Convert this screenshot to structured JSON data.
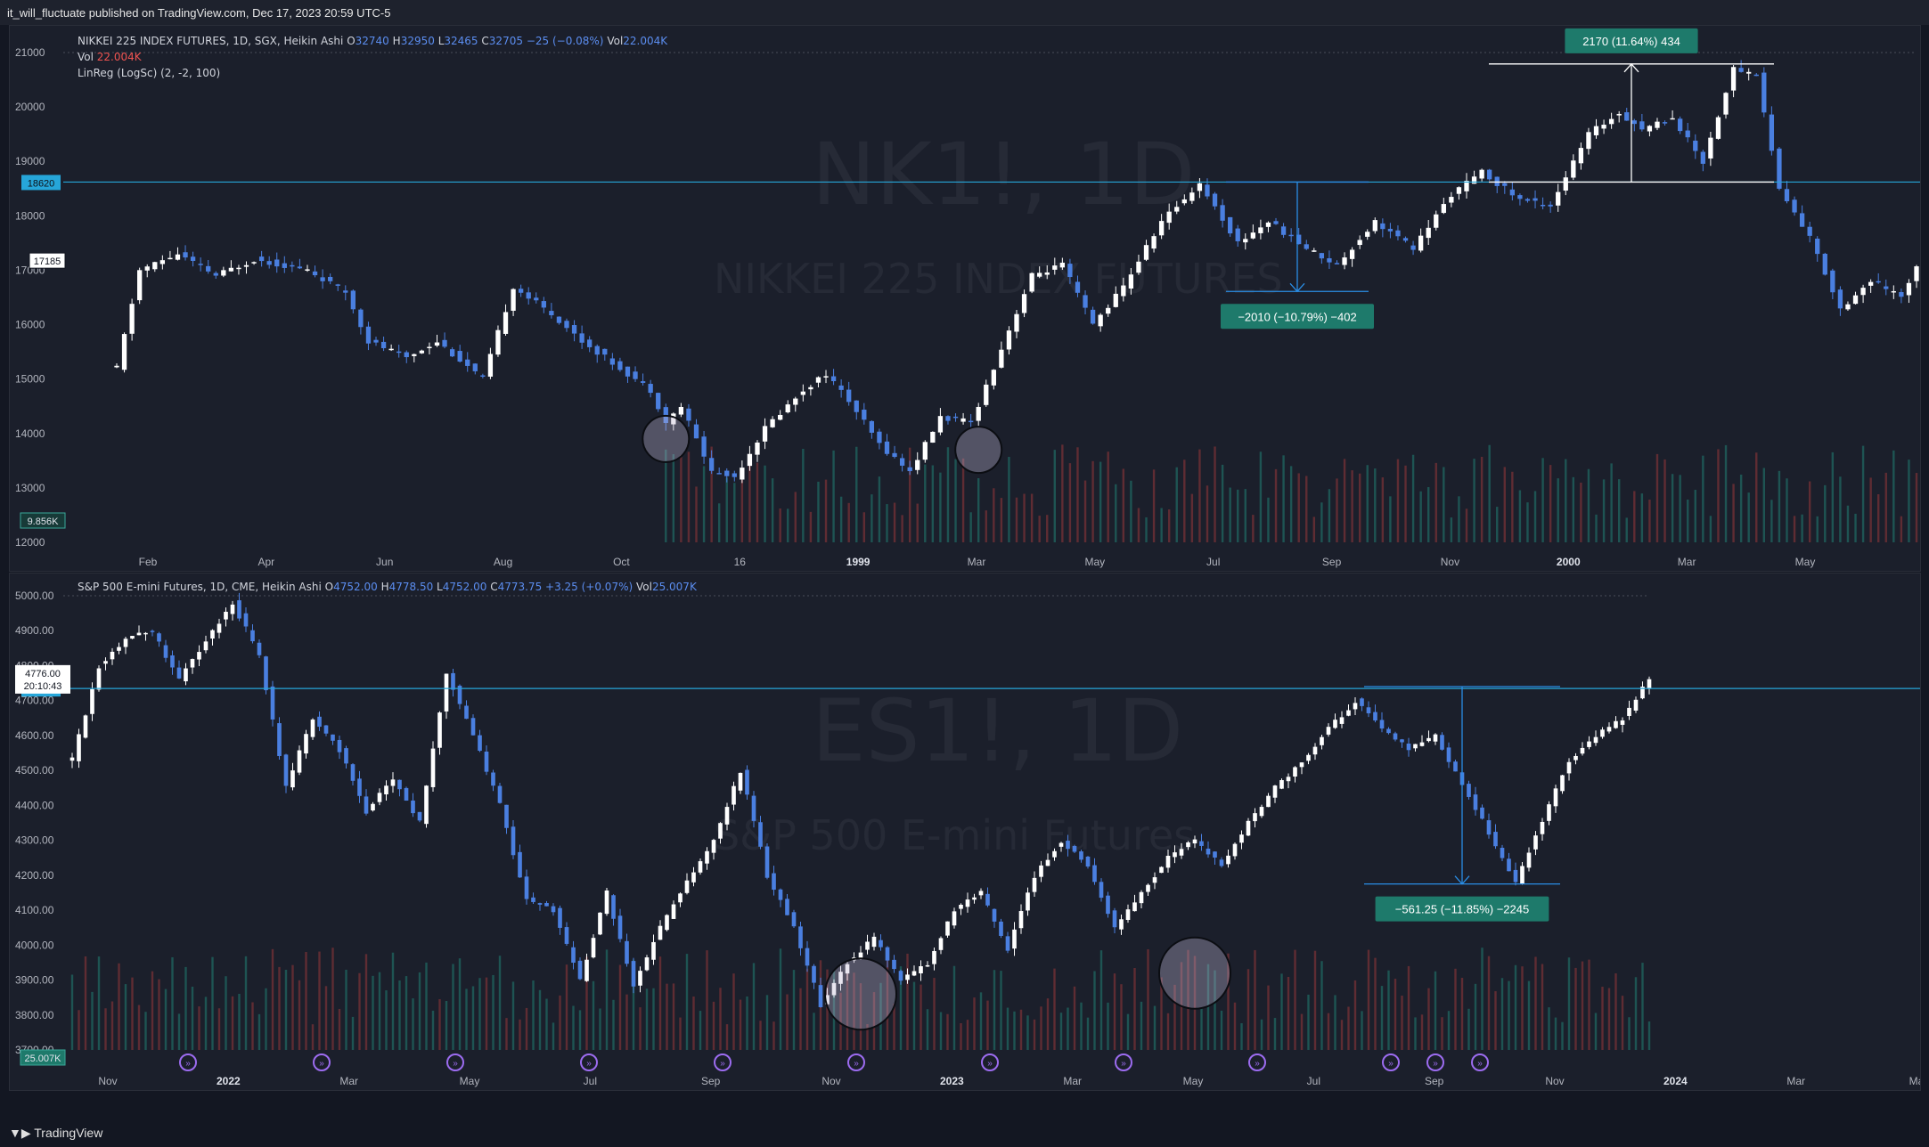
{
  "header": {
    "published": "it_will_fluctuate published on TradingView.com, Dec 17, 2023 20:59 UTC-5"
  },
  "footer": {
    "brand": "TradingView"
  },
  "colors": {
    "up": "#ffffff",
    "down": "#4a7fe0",
    "level": "#26a6d9",
    "label_bg": "#1e7a6b",
    "vol_up": "#1f5e5a",
    "vol_down": "#6b2f35"
  },
  "chart_data": [
    {
      "type": "candlestick",
      "symbol_watermark": "NK1!, 1D",
      "name_watermark": "NIKKEI 225 INDEX FUTURES",
      "legend": {
        "title": "NIKKEI 225 INDEX FUTURES, 1D, SGX, Heikin Ashi",
        "O": "32740",
        "H": "32950",
        "L": "32465",
        "C": "32705",
        "change": "−25 (−0.08%)",
        "vol": "22.004K",
        "vol_label": "Vol",
        "vol_value": "22.004K",
        "indicator": "LinReg (LogSc) (2, -2, 100)"
      },
      "x_ticks": [
        "Feb",
        "Apr",
        "Jun",
        "Aug",
        "Oct",
        "16",
        "1999",
        "Mar",
        "May",
        "Jul",
        "Sep",
        "Nov",
        "2000",
        "Mar",
        "May"
      ],
      "y_ticks": [
        "21000",
        "20000",
        "19000",
        "18000",
        "17000",
        "16000",
        "15000",
        "14000",
        "13000",
        "12000"
      ],
      "ylim": [
        12000,
        21000
      ],
      "price_labels": {
        "level": "18620",
        "last": "17185",
        "volume": "9.856K"
      },
      "level_line": 18620,
      "measurements": [
        {
          "label": "−2010 (−10.79%) −402",
          "from": 18620,
          "to": 16610
        },
        {
          "label": "2170 (11.64%) 434",
          "from": 18620,
          "to": 20790
        }
      ],
      "path": [
        [
          0,
          15200
        ],
        [
          3,
          17000
        ],
        [
          8,
          17300
        ],
        [
          13,
          16900
        ],
        [
          18,
          17200
        ],
        [
          25,
          17000
        ],
        [
          30,
          16600
        ],
        [
          33,
          15700
        ],
        [
          38,
          15400
        ],
        [
          42,
          15700
        ],
        [
          48,
          15000
        ],
        [
          52,
          16700
        ],
        [
          57,
          16200
        ],
        [
          61,
          15700
        ],
        [
          65,
          15300
        ],
        [
          70,
          14800
        ],
        [
          72,
          14200
        ],
        [
          74,
          14500
        ],
        [
          78,
          13300
        ],
        [
          81,
          13200
        ],
        [
          85,
          14100
        ],
        [
          90,
          14800
        ],
        [
          93,
          15100
        ],
        [
          96,
          14600
        ],
        [
          100,
          13800
        ],
        [
          104,
          13300
        ],
        [
          108,
          14300
        ],
        [
          112,
          14200
        ],
        [
          117,
          15900
        ],
        [
          120,
          16900
        ],
        [
          124,
          17100
        ],
        [
          128,
          16000
        ],
        [
          132,
          16700
        ],
        [
          137,
          17900
        ],
        [
          142,
          18600
        ],
        [
          147,
          17500
        ],
        [
          151,
          17900
        ],
        [
          156,
          17400
        ],
        [
          160,
          17100
        ],
        [
          165,
          17900
        ],
        [
          170,
          17400
        ],
        [
          175,
          18400
        ],
        [
          179,
          18800
        ],
        [
          184,
          18300
        ],
        [
          188,
          18200
        ],
        [
          193,
          19500
        ],
        [
          197,
          19900
        ],
        [
          200,
          19600
        ],
        [
          204,
          19800
        ],
        [
          208,
          19000
        ],
        [
          212,
          20700
        ],
        [
          215,
          20600
        ],
        [
          218,
          18500
        ],
        [
          222,
          17600
        ],
        [
          226,
          16300
        ],
        [
          230,
          16800
        ],
        [
          234,
          16500
        ],
        [
          236,
          17100
        ]
      ],
      "circles": [
        {
          "x": 72,
          "y": 13900
        },
        {
          "x": 113,
          "y": 13700
        }
      ]
    },
    {
      "type": "candlestick",
      "symbol_watermark": "ES1!, 1D",
      "name_watermark": "S&P 500 E-mini Futures",
      "legend": {
        "title": "S&P 500 E-mini Futures, 1D, CME, Heikin Ashi",
        "O": "4752.00",
        "H": "4778.50",
        "L": "4752.00",
        "C": "4773.75",
        "change": "+3.25 (+0.07%)",
        "vol": "25.007K"
      },
      "x_ticks": [
        "Nov",
        "2022",
        "Mar",
        "May",
        "Jul",
        "Sep",
        "Nov",
        "2023",
        "Mar",
        "May",
        "Jul",
        "Sep",
        "Nov",
        "2024",
        "Mar",
        "Ma"
      ],
      "y_ticks": [
        "5000.00",
        "4900.00",
        "4800.00",
        "4700.00",
        "4600.00",
        "4500.00",
        "4400.00",
        "4300.00",
        "4200.00",
        "4100.00",
        "4000.00",
        "3900.00",
        "3800.00",
        "3700.00"
      ],
      "ylim": [
        3700,
        5000
      ],
      "price_labels": {
        "last": "4776.00",
        "countdown": "20:10:43",
        "level": "4734.50",
        "volume": "25.007K"
      },
      "level_line": 4734.5,
      "measurements": [
        {
          "label": "−561.25 (−11.85%) −2245",
          "from": 4740,
          "to": 4175
        }
      ],
      "path": [
        [
          0,
          4530
        ],
        [
          4,
          4800
        ],
        [
          8,
          4880
        ],
        [
          12,
          4900
        ],
        [
          16,
          4760
        ],
        [
          20,
          4870
        ],
        [
          24,
          4980
        ],
        [
          28,
          4830
        ],
        [
          32,
          4450
        ],
        [
          36,
          4650
        ],
        [
          40,
          4560
        ],
        [
          44,
          4380
        ],
        [
          48,
          4480
        ],
        [
          52,
          4350
        ],
        [
          56,
          4780
        ],
        [
          60,
          4600
        ],
        [
          64,
          4400
        ],
        [
          68,
          4130
        ],
        [
          72,
          4100
        ],
        [
          76,
          3900
        ],
        [
          80,
          4150
        ],
        [
          84,
          3880
        ],
        [
          88,
          4050
        ],
        [
          92,
          4180
        ],
        [
          96,
          4300
        ],
        [
          100,
          4500
        ],
        [
          104,
          4200
        ],
        [
          108,
          4050
        ],
        [
          112,
          3830
        ],
        [
          116,
          3950
        ],
        [
          120,
          4020
        ],
        [
          124,
          3900
        ],
        [
          128,
          3950
        ],
        [
          132,
          4100
        ],
        [
          136,
          4150
        ],
        [
          140,
          3990
        ],
        [
          144,
          4200
        ],
        [
          148,
          4300
        ],
        [
          152,
          4230
        ],
        [
          156,
          4050
        ],
        [
          160,
          4150
        ],
        [
          164,
          4250
        ],
        [
          168,
          4300
        ],
        [
          172,
          4230
        ],
        [
          176,
          4350
        ],
        [
          180,
          4450
        ],
        [
          184,
          4520
        ],
        [
          188,
          4620
        ],
        [
          192,
          4700
        ],
        [
          196,
          4620
        ],
        [
          200,
          4560
        ],
        [
          204,
          4600
        ],
        [
          208,
          4460
        ],
        [
          212,
          4320
        ],
        [
          216,
          4180
        ],
        [
          220,
          4360
        ],
        [
          224,
          4530
        ],
        [
          228,
          4600
        ],
        [
          232,
          4650
        ],
        [
          236,
          4760
        ]
      ],
      "circles": [
        {
          "x": 118,
          "y": 3860
        },
        {
          "x": 168,
          "y": 3920
        }
      ],
      "event_icons": 12
    }
  ]
}
